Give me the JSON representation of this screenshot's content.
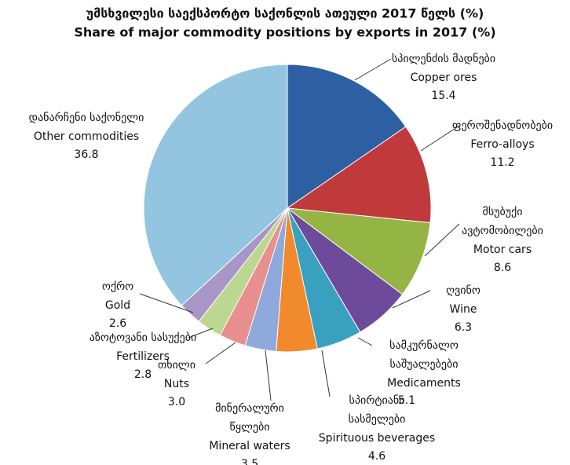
{
  "chart_data": {
    "type": "pie",
    "title_ka": "უმსხვილესი საექსპორტო საქონლის ათეული 2017 წელს (%)",
    "title": "Share of major commodity positions by exports in 2017 (%)",
    "categories": [
      "Copper ores",
      "Ferro-alloys",
      "Motor cars",
      "Wine",
      "Medicaments",
      "Spirituous beverages",
      "Mineral waters",
      "Nuts",
      "Fertilizers",
      "Gold",
      "Other commodities"
    ],
    "categories_ka": [
      [
        "სპილენძის მადნები"
      ],
      [
        "ფეროშენადნობები"
      ],
      [
        "მსუბუქი",
        "ავტომობილები"
      ],
      [
        "ღვინო"
      ],
      [
        "სამკურნალო",
        "საშუალებები"
      ],
      [
        "სპირტიანი",
        "სასმელები"
      ],
      [
        "მინერალური",
        "წყლები"
      ],
      [
        "თხილი"
      ],
      [
        "აზოტოვანი სასუქები"
      ],
      [
        "ოქრო"
      ],
      [
        "დანარჩენი საქონელი"
      ]
    ],
    "values": [
      15.4,
      11.2,
      8.6,
      6.3,
      5.1,
      4.6,
      3.5,
      3.0,
      2.8,
      2.6,
      36.8
    ],
    "value_labels": [
      "15.4",
      "11.2",
      "8.6",
      "6.3",
      "5.1",
      "4.6",
      "3.5",
      "3.0",
      "2.8",
      "2.6",
      "36.8"
    ],
    "colors": [
      "#2e5fa3",
      "#c0393b",
      "#94b443",
      "#6e4b9a",
      "#3aa0bf",
      "#f08a2c",
      "#8fa9dc",
      "#e88f8f",
      "#bcd78f",
      "#a896c6",
      "#93c5e0"
    ]
  }
}
